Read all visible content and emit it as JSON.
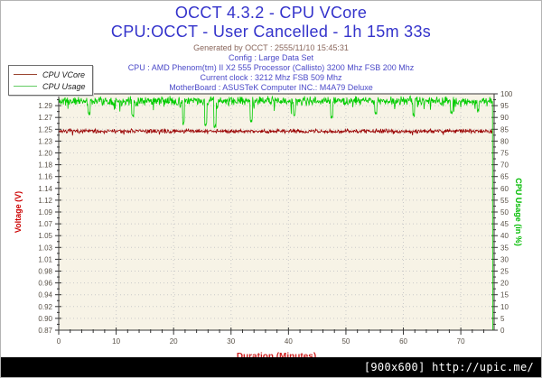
{
  "header": {
    "title": "OCCT 4.3.2 - CPU VCore",
    "subtitle": "CPU:OCCT - User Cancelled - 1h 15m 33s",
    "generated": "Generated by OCCT : 2555/11/10 15:45:31",
    "info_lines": [
      "Config : Large Data Set",
      "CPU : AMD Phenom(tm) II X2 555 Processor (Callisto) 3200 Mhz FSB 200 Mhz",
      "Current clock : 3212 Mhz FSB 509 Mhz",
      "MotherBoard : ASUSTeK Computer INC.: M4A79 Deluxe"
    ]
  },
  "legend": {
    "items": [
      {
        "label": "CPU VCore",
        "color": "#9a4430"
      },
      {
        "label": "CPU Usage",
        "color": "#63cc63"
      }
    ]
  },
  "footer": {
    "text": "[900x600] http://upic.me/"
  },
  "colors": {
    "title_blue": "#3433cb",
    "info_blue": "#4b49c8",
    "generated_brown": "#8a675c",
    "plot_bg": "#f7f3e6",
    "plot_border": "#3a3a3a",
    "grid": "#c9c9c9",
    "tick_label": "#5a5248",
    "x_axis_title": "#cc2020",
    "left_axis_title": "#cc0000",
    "right_axis_title": "#00bb00",
    "vcore_line": "#990000",
    "usage_line": "#00cc00"
  },
  "chart_data": {
    "type": "line",
    "title": "OCCT 4.3.2 - CPU VCore",
    "xlabel": "Duration (Minutes)",
    "x_range": [
      0,
      75.8
    ],
    "x_major_ticks": [
      0,
      10,
      20,
      30,
      40,
      50,
      60,
      70
    ],
    "x_minor_step": 2,
    "t_end": 75.55,
    "t_step": 0.08,
    "grid": "dotted",
    "legend_position": "top-left",
    "left_axis": {
      "label": "Voltage (V)",
      "min": 0.87,
      "max": 1.31,
      "tick_labels": [
        "1.31",
        "1.29",
        "1.27",
        "1.25",
        "1.23",
        "1.20",
        "1.18",
        "1.16",
        "1.14",
        "1.12",
        "1.09",
        "1.07",
        "1.05",
        "1.03",
        "1.01",
        "0.98",
        "0.96",
        "0.94",
        "0.92",
        "0.90",
        "0.87"
      ]
    },
    "right_axis": {
      "label": "CPU Usage (in %)",
      "min": 0,
      "max": 100,
      "tick_labels": [
        "100",
        "95",
        "90",
        "85",
        "80",
        "75",
        "70",
        "65",
        "60",
        "55",
        "50",
        "45",
        "40",
        "35",
        "30",
        "25",
        "20",
        "15",
        "10",
        "5",
        "0"
      ]
    },
    "series": [
      {
        "name": "CPU VCore",
        "axis": "left",
        "color": "#990000",
        "baseline": 1.2405,
        "noise": 0.0045,
        "spike_chance": 0.04,
        "spike_depth": 0.005,
        "seed": 7,
        "summary": "Steady around 1.24 V for entire 75.5 minute run"
      },
      {
        "name": "CPU Usage",
        "axis": "right",
        "color": "#00cc00",
        "baseline": 97.0,
        "noise": 2.2,
        "spike_chance": 0.05,
        "spike_depth": 4,
        "max": 100,
        "seed": 11,
        "end_value": 0,
        "dips": [
          {
            "t": 5.3,
            "v": 91.0
          },
          {
            "t": 12.9,
            "v": 90.0
          },
          {
            "t": 21.7,
            "v": 87.0
          },
          {
            "t": 25.6,
            "v": 86.5
          },
          {
            "t": 27.2,
            "v": 85.5
          },
          {
            "t": 33.5,
            "v": 88.0
          },
          {
            "t": 41.0,
            "v": 90.5
          },
          {
            "t": 47.5,
            "v": 89.5
          },
          {
            "t": 55.2,
            "v": 91.0
          },
          {
            "t": 61.8,
            "v": 90.0
          },
          {
            "t": 68.4,
            "v": 91.0
          },
          {
            "t": 73.0,
            "v": 92.0
          }
        ],
        "summary": "Noisy band 93-100%, occasional dips to ~85-88%, drops to 0 at end of test"
      }
    ]
  }
}
